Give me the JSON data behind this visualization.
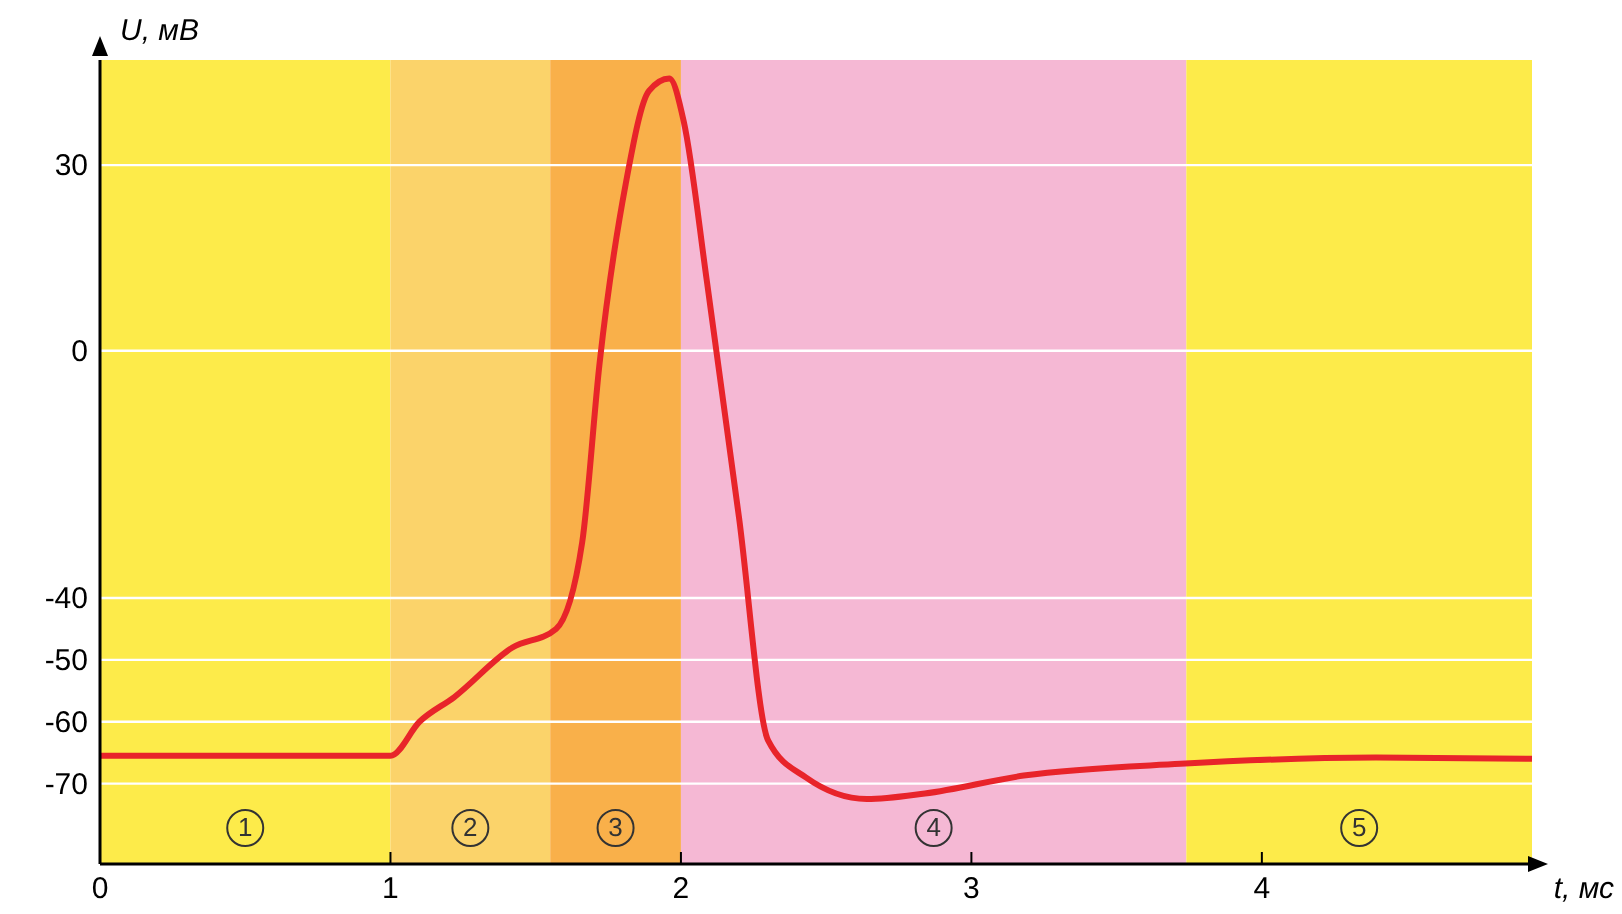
{
  "chart_data": {
    "type": "line",
    "xlabel": "t, мс",
    "ylabel": "U, мВ",
    "xlim": [
      0,
      4.93
    ],
    "ylim": [
      -83,
      47
    ],
    "xticks": [
      0,
      1,
      2,
      3,
      4
    ],
    "yticks": [
      30,
      0,
      -40,
      -50,
      -60,
      -70
    ],
    "grid": "y",
    "bands": [
      {
        "axis": "x",
        "from": 0,
        "to": 1,
        "label": "1",
        "color": "#fdeb4a"
      },
      {
        "axis": "x",
        "from": 1,
        "to": 1.55,
        "label": "2",
        "color": "#fbd36a"
      },
      {
        "axis": "x",
        "from": 1.55,
        "to": 2,
        "label": "3",
        "color": "#f9b04a"
      },
      {
        "axis": "x",
        "from": 2,
        "to": 3.74,
        "label": "4",
        "color": "#f5b8d4"
      },
      {
        "axis": "x",
        "from": 3.74,
        "to": 4.93,
        "label": "5",
        "color": "#fdeb4a"
      }
    ],
    "series": [
      {
        "color": "#e8242a",
        "x": [
          0,
          1,
          1.1,
          1.22,
          1.42,
          1.57,
          1.66,
          1.72,
          1.81,
          1.89,
          1.96,
          2.01,
          2.09,
          2.2,
          2.3,
          2.43,
          2.64,
          2.84,
          3.18,
          3.72,
          4.39,
          4.93
        ],
        "values": [
          -65.5,
          -65.5,
          -60,
          -56,
          -48,
          -45,
          -31,
          -2,
          27,
          42,
          44,
          37,
          11,
          -27,
          -63,
          -69,
          -72.5,
          -71.6,
          -68.7,
          -66.8,
          -65.8,
          -66
        ]
      }
    ]
  }
}
